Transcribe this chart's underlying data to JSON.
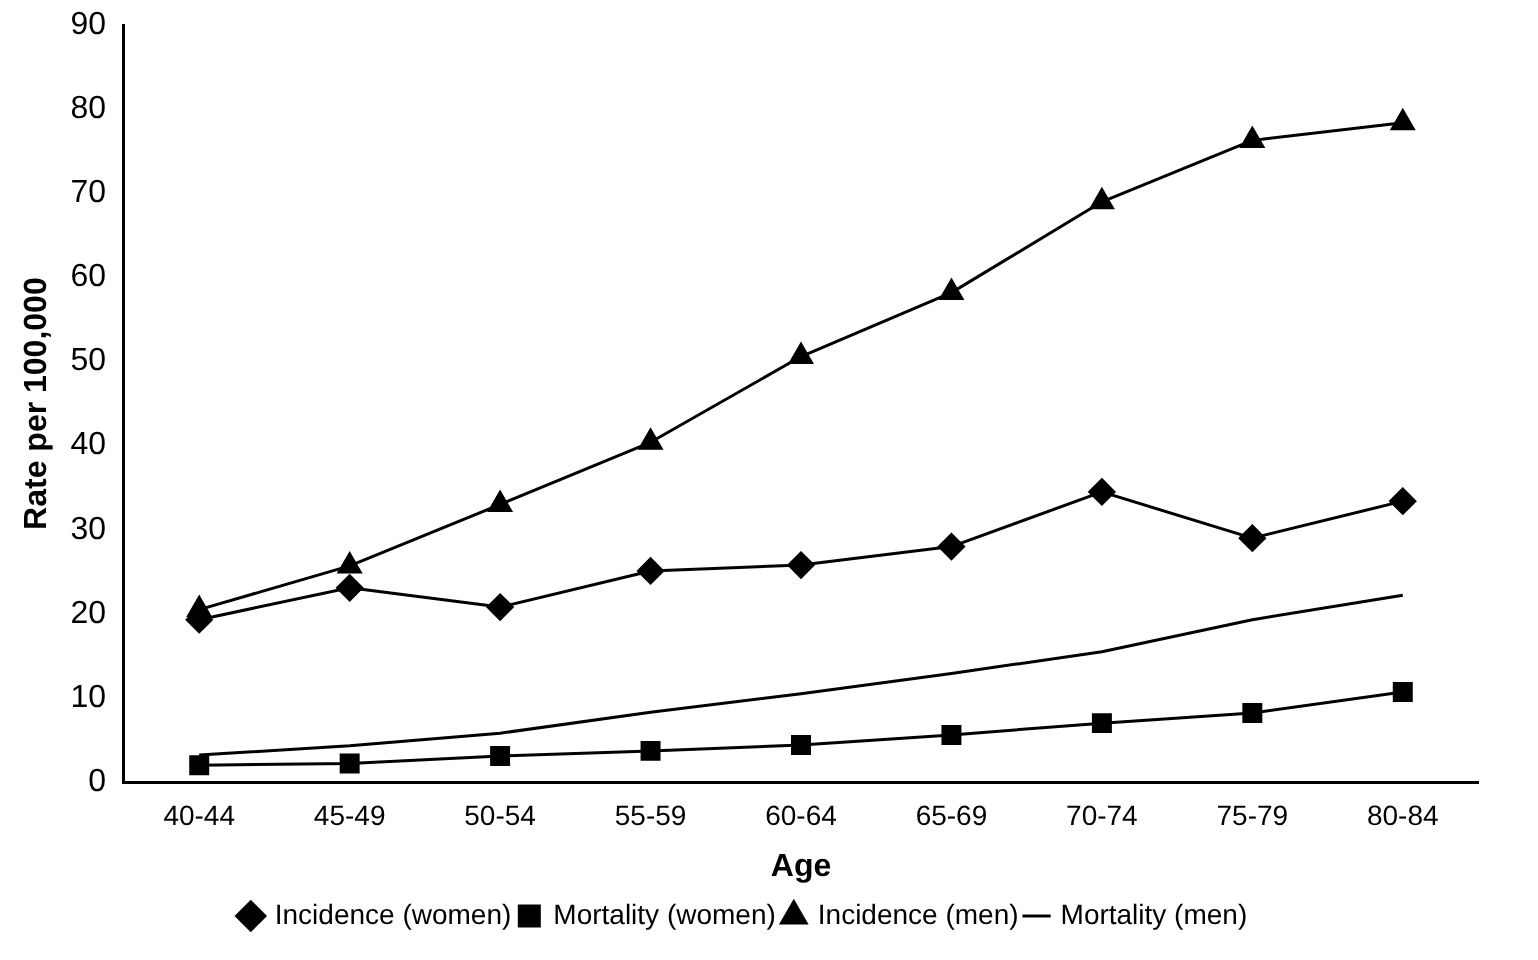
{
  "chart_data": {
    "type": "line",
    "xlabel": "Age",
    "ylabel": "Rate per 100,000",
    "categories": [
      "40-44",
      "45-49",
      "50-54",
      "55-59",
      "60-64",
      "65-69",
      "70-74",
      "75-79",
      "80-84"
    ],
    "series": [
      {
        "name": "Incidence (women)",
        "color": "#000000",
        "marker": "diamond",
        "values": [
          19.3,
          23.1,
          20.8,
          25.1,
          25.8,
          28,
          34.5,
          29,
          33.4
        ]
      },
      {
        "name": "Mortality (women)",
        "color": "#000000",
        "marker": "square",
        "values": [
          2,
          2.2,
          3.1,
          3.7,
          4.4,
          5.6,
          7,
          8.2,
          10.7
        ]
      },
      {
        "name": "Incidence (men)",
        "color": "#000000",
        "marker": "triangle",
        "values": [
          20.5,
          25.7,
          33,
          40.4,
          50.6,
          58.2,
          69,
          76.3,
          78.4
        ]
      },
      {
        "name": "Mortality (men)",
        "color": "#000000",
        "marker": "none",
        "values": [
          3.2,
          4.3,
          5.8,
          8.3,
          10.5,
          12.9,
          15.5,
          19.3,
          22.2
        ]
      }
    ],
    "ylim": [
      0,
      90
    ],
    "yticks": [
      0,
      10,
      20,
      30,
      40,
      50,
      60,
      70,
      80,
      90
    ],
    "grid": false,
    "legend": "bottom"
  }
}
